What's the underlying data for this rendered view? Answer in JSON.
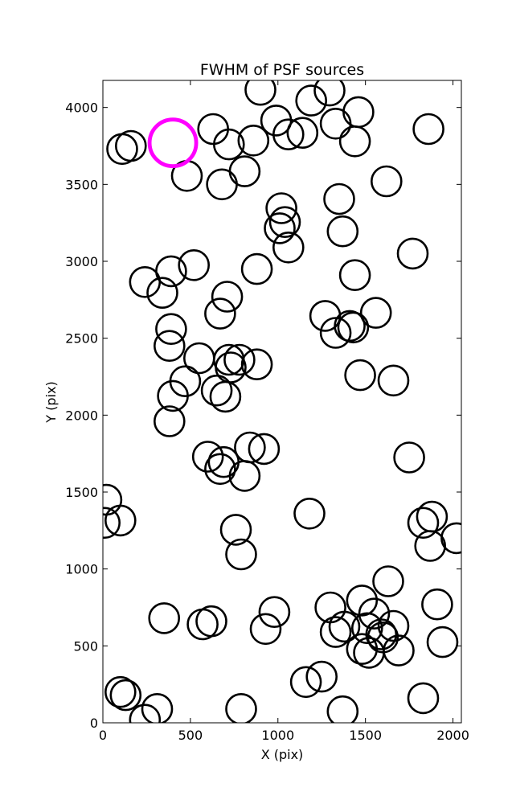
{
  "chart_data": {
    "type": "scatter",
    "title": "FWHM of PSF sources",
    "xlabel": "X (pix)",
    "ylabel": "Y (pix)",
    "xlim": [
      0,
      2048
    ],
    "ylim": [
      0,
      4176
    ],
    "xticks": [
      0,
      500,
      1000,
      1500,
      2000
    ],
    "yticks": [
      0,
      500,
      1000,
      1500,
      2000,
      2500,
      3000,
      3500,
      4000
    ],
    "xtick_labels": [
      "0",
      "500",
      "1000",
      "1500",
      "2000"
    ],
    "ytick_labels": [
      "0",
      "500",
      "1000",
      "1500",
      "2000",
      "2500",
      "3000",
      "3500",
      "4000"
    ],
    "grid": false,
    "marker_color": "#000000",
    "highlight_color": "#ff00ff",
    "series": [
      {
        "marker": "open-circle",
        "points": [
          {
            "x": 900,
            "y": 4115
          },
          {
            "x": 1295,
            "y": 4110
          },
          {
            "x": 1190,
            "y": 4045
          },
          {
            "x": 1460,
            "y": 3970
          },
          {
            "x": 990,
            "y": 3915
          },
          {
            "x": 1330,
            "y": 3895
          },
          {
            "x": 1860,
            "y": 3860
          },
          {
            "x": 630,
            "y": 3860
          },
          {
            "x": 1140,
            "y": 3835
          },
          {
            "x": 1060,
            "y": 3825
          },
          {
            "x": 860,
            "y": 3785
          },
          {
            "x": 1440,
            "y": 3780
          },
          {
            "x": 720,
            "y": 3760
          },
          {
            "x": 160,
            "y": 3750
          },
          {
            "x": 110,
            "y": 3730
          },
          {
            "x": 810,
            "y": 3585
          },
          {
            "x": 480,
            "y": 3555
          },
          {
            "x": 1620,
            "y": 3520
          },
          {
            "x": 680,
            "y": 3500
          },
          {
            "x": 1350,
            "y": 3405
          },
          {
            "x": 1020,
            "y": 3345
          },
          {
            "x": 1040,
            "y": 3255
          },
          {
            "x": 1010,
            "y": 3215
          },
          {
            "x": 1370,
            "y": 3195
          },
          {
            "x": 1060,
            "y": 3090
          },
          {
            "x": 1770,
            "y": 3050
          },
          {
            "x": 520,
            "y": 2975
          },
          {
            "x": 880,
            "y": 2950
          },
          {
            "x": 390,
            "y": 2935
          },
          {
            "x": 1440,
            "y": 2910
          },
          {
            "x": 240,
            "y": 2865
          },
          {
            "x": 340,
            "y": 2795
          },
          {
            "x": 710,
            "y": 2770
          },
          {
            "x": 1560,
            "y": 2665
          },
          {
            "x": 670,
            "y": 2660
          },
          {
            "x": 1270,
            "y": 2645
          },
          {
            "x": 1410,
            "y": 2580
          },
          {
            "x": 1430,
            "y": 2570
          },
          {
            "x": 1330,
            "y": 2535
          },
          {
            "x": 390,
            "y": 2560
          },
          {
            "x": 380,
            "y": 2450
          },
          {
            "x": 550,
            "y": 2370
          },
          {
            "x": 720,
            "y": 2360
          },
          {
            "x": 780,
            "y": 2360
          },
          {
            "x": 880,
            "y": 2330
          },
          {
            "x": 730,
            "y": 2310
          },
          {
            "x": 1470,
            "y": 2260
          },
          {
            "x": 1660,
            "y": 2225
          },
          {
            "x": 470,
            "y": 2220
          },
          {
            "x": 650,
            "y": 2160
          },
          {
            "x": 400,
            "y": 2125
          },
          {
            "x": 700,
            "y": 2120
          },
          {
            "x": 380,
            "y": 1960
          },
          {
            "x": 840,
            "y": 1790
          },
          {
            "x": 920,
            "y": 1780
          },
          {
            "x": 600,
            "y": 1730
          },
          {
            "x": 1750,
            "y": 1725
          },
          {
            "x": 690,
            "y": 1695
          },
          {
            "x": 670,
            "y": 1650
          },
          {
            "x": 810,
            "y": 1605
          },
          {
            "x": 20,
            "y": 1450
          },
          {
            "x": 10,
            "y": 1300
          },
          {
            "x": 1180,
            "y": 1360
          },
          {
            "x": 1880,
            "y": 1340
          },
          {
            "x": 100,
            "y": 1315
          },
          {
            "x": 1830,
            "y": 1300
          },
          {
            "x": 760,
            "y": 1255
          },
          {
            "x": 2020,
            "y": 1200
          },
          {
            "x": 1870,
            "y": 1150
          },
          {
            "x": 790,
            "y": 1095
          },
          {
            "x": 1630,
            "y": 920
          },
          {
            "x": 1910,
            "y": 770
          },
          {
            "x": 1300,
            "y": 750
          },
          {
            "x": 1480,
            "y": 795
          },
          {
            "x": 980,
            "y": 720
          },
          {
            "x": 1550,
            "y": 710
          },
          {
            "x": 350,
            "y": 680
          },
          {
            "x": 620,
            "y": 660
          },
          {
            "x": 570,
            "y": 640
          },
          {
            "x": 1660,
            "y": 630
          },
          {
            "x": 1380,
            "y": 625
          },
          {
            "x": 1510,
            "y": 615
          },
          {
            "x": 930,
            "y": 610
          },
          {
            "x": 1330,
            "y": 590
          },
          {
            "x": 1590,
            "y": 575
          },
          {
            "x": 1600,
            "y": 555
          },
          {
            "x": 1940,
            "y": 525
          },
          {
            "x": 1480,
            "y": 480
          },
          {
            "x": 1690,
            "y": 470
          },
          {
            "x": 1520,
            "y": 455
          },
          {
            "x": 1250,
            "y": 300
          },
          {
            "x": 1160,
            "y": 265
          },
          {
            "x": 100,
            "y": 200
          },
          {
            "x": 130,
            "y": 180
          },
          {
            "x": 1830,
            "y": 160
          },
          {
            "x": 310,
            "y": 90
          },
          {
            "x": 790,
            "y": 90
          },
          {
            "x": 1370,
            "y": 75
          },
          {
            "x": 240,
            "y": 20
          }
        ]
      },
      {
        "marker": "open-circle-highlight",
        "points": [
          {
            "x": 400,
            "y": 3770
          }
        ]
      }
    ]
  }
}
